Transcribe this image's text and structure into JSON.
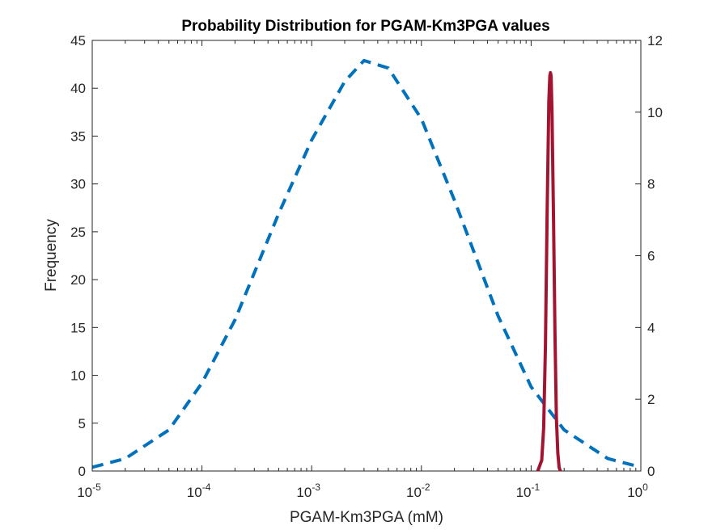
{
  "chart_data": {
    "type": "line",
    "title": "Probability Distribution for PGAM-Km3PGA values",
    "xlabel": "PGAM-Km3PGA (mM)",
    "ylabel": "Frequency",
    "y2label": "",
    "xscale": "log",
    "xlim": [
      1e-05,
      1
    ],
    "ylim": [
      0,
      45
    ],
    "y2lim": [
      0,
      12
    ],
    "grid": false,
    "legend": "none",
    "x_ticks": [
      {
        "base": "10",
        "exp": "-5",
        "value": 1e-05
      },
      {
        "base": "10",
        "exp": "-4",
        "value": 0.0001
      },
      {
        "base": "10",
        "exp": "-3",
        "value": 0.001
      },
      {
        "base": "10",
        "exp": "-2",
        "value": 0.01
      },
      {
        "base": "10",
        "exp": "-1",
        "value": 0.1
      },
      {
        "base": "10",
        "exp": "0",
        "value": 1
      }
    ],
    "y_ticks": [
      "0",
      "5",
      "10",
      "15",
      "20",
      "25",
      "30",
      "35",
      "40",
      "45"
    ],
    "y2_ticks": [
      "0",
      "2",
      "4",
      "6",
      "8",
      "10",
      "12"
    ],
    "series": [
      {
        "axis": "left",
        "style": "dashed",
        "color": "#0072BD",
        "x": [
          1e-05,
          2e-05,
          5e-05,
          0.0001,
          0.0002,
          0.0005,
          0.001,
          0.002,
          0.003,
          0.005,
          0.01,
          0.02,
          0.05,
          0.1,
          0.2,
          0.5,
          1
        ],
        "y": [
          0.4,
          1.3,
          4.3,
          9.2,
          15.8,
          26.9,
          34.6,
          40.7,
          42.9,
          42.1,
          36.8,
          28.3,
          16.2,
          8.8,
          4.3,
          1.3,
          0.4
        ]
      },
      {
        "axis": "right",
        "style": "solid",
        "color": "#A2142F",
        "x": [
          0.115,
          0.125,
          0.13,
          0.135,
          0.14,
          0.145,
          0.148,
          0.15,
          0.152,
          0.155,
          0.16,
          0.165,
          0.17,
          0.175,
          0.18,
          0.185
        ],
        "y": [
          0.0,
          0.3,
          1.2,
          3.5,
          7.2,
          10.3,
          11.0,
          11.1,
          11.0,
          10.0,
          7.0,
          3.8,
          1.5,
          0.5,
          0.1,
          0.0
        ]
      }
    ]
  }
}
